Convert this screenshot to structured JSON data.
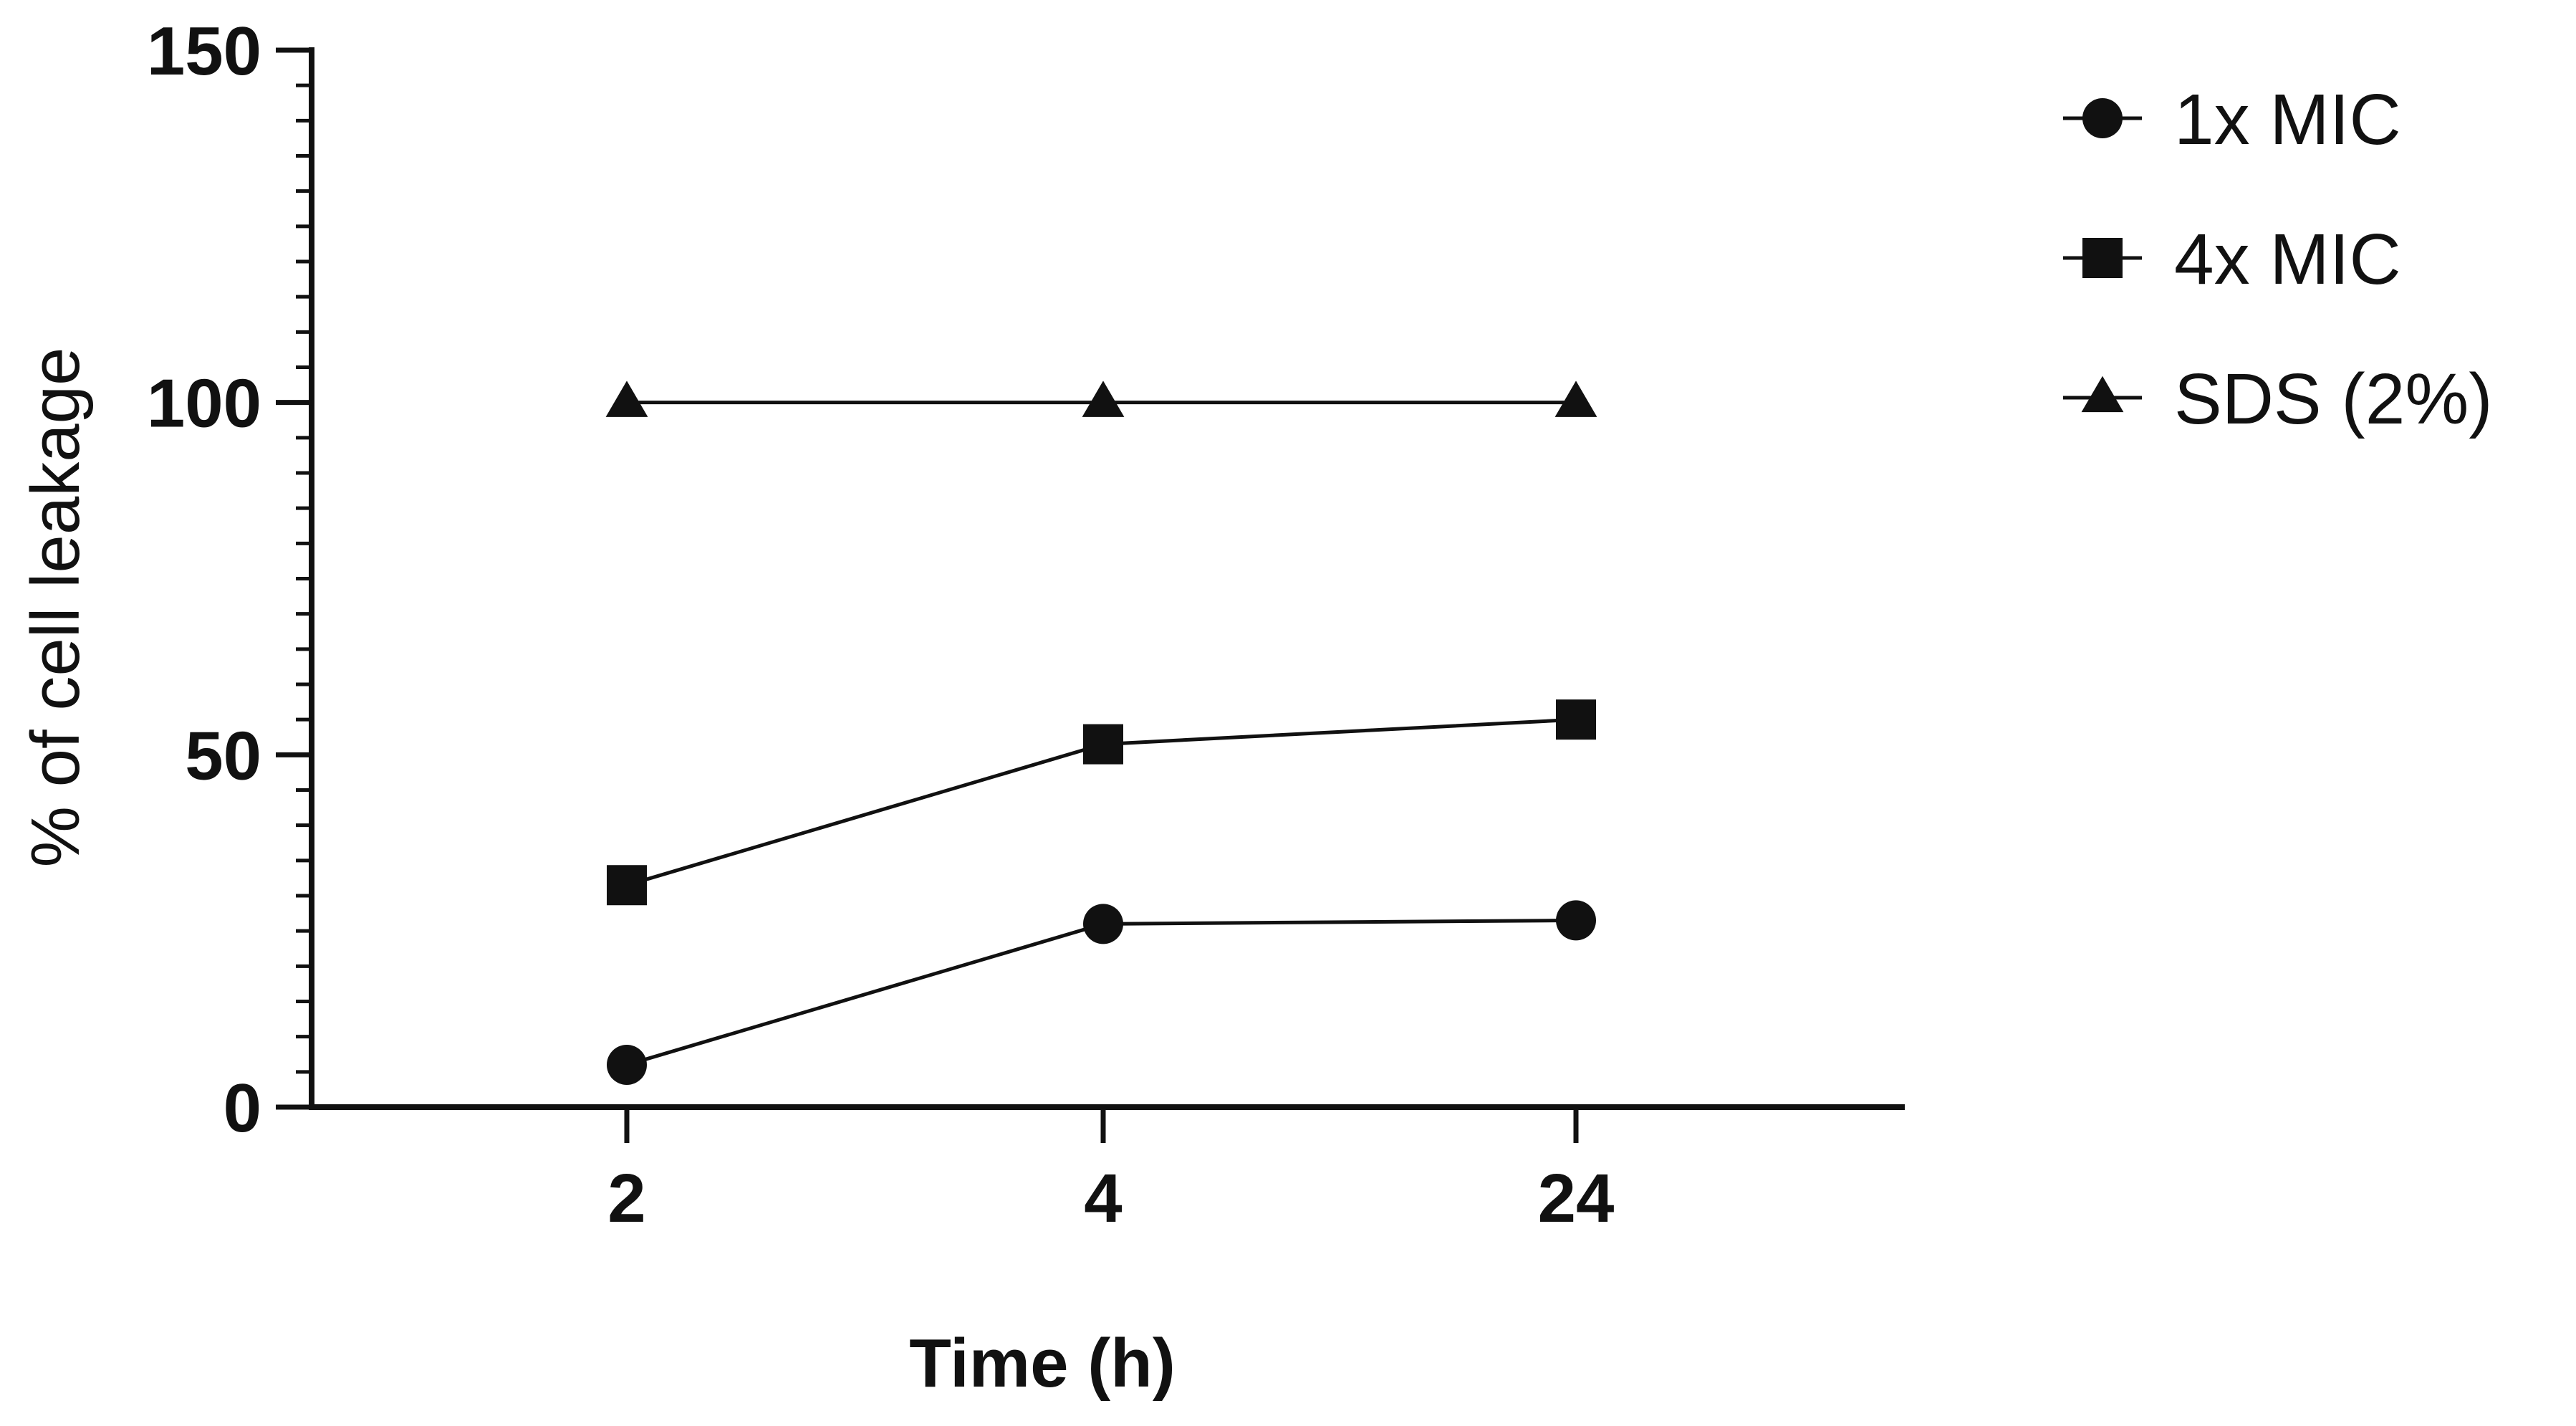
{
  "chart_data": {
    "type": "line",
    "categories": [
      "2",
      "4",
      "24"
    ],
    "xlabel": "Time (h)",
    "ylabel": "% of cell leakage",
    "ylim": [
      0,
      150
    ],
    "y_ticks": [
      "0",
      "50",
      "100",
      "150"
    ],
    "grid": false,
    "legend_position": "top-right",
    "series": [
      {
        "name": "1x MIC",
        "marker": "circle",
        "values": [
          6,
          26,
          26.5
        ]
      },
      {
        "name": "4x MIC",
        "marker": "square",
        "values": [
          31.5,
          51.5,
          55
        ]
      },
      {
        "name": "SDS (2%)",
        "marker": "triangle",
        "values": [
          100,
          100,
          100
        ]
      }
    ]
  }
}
